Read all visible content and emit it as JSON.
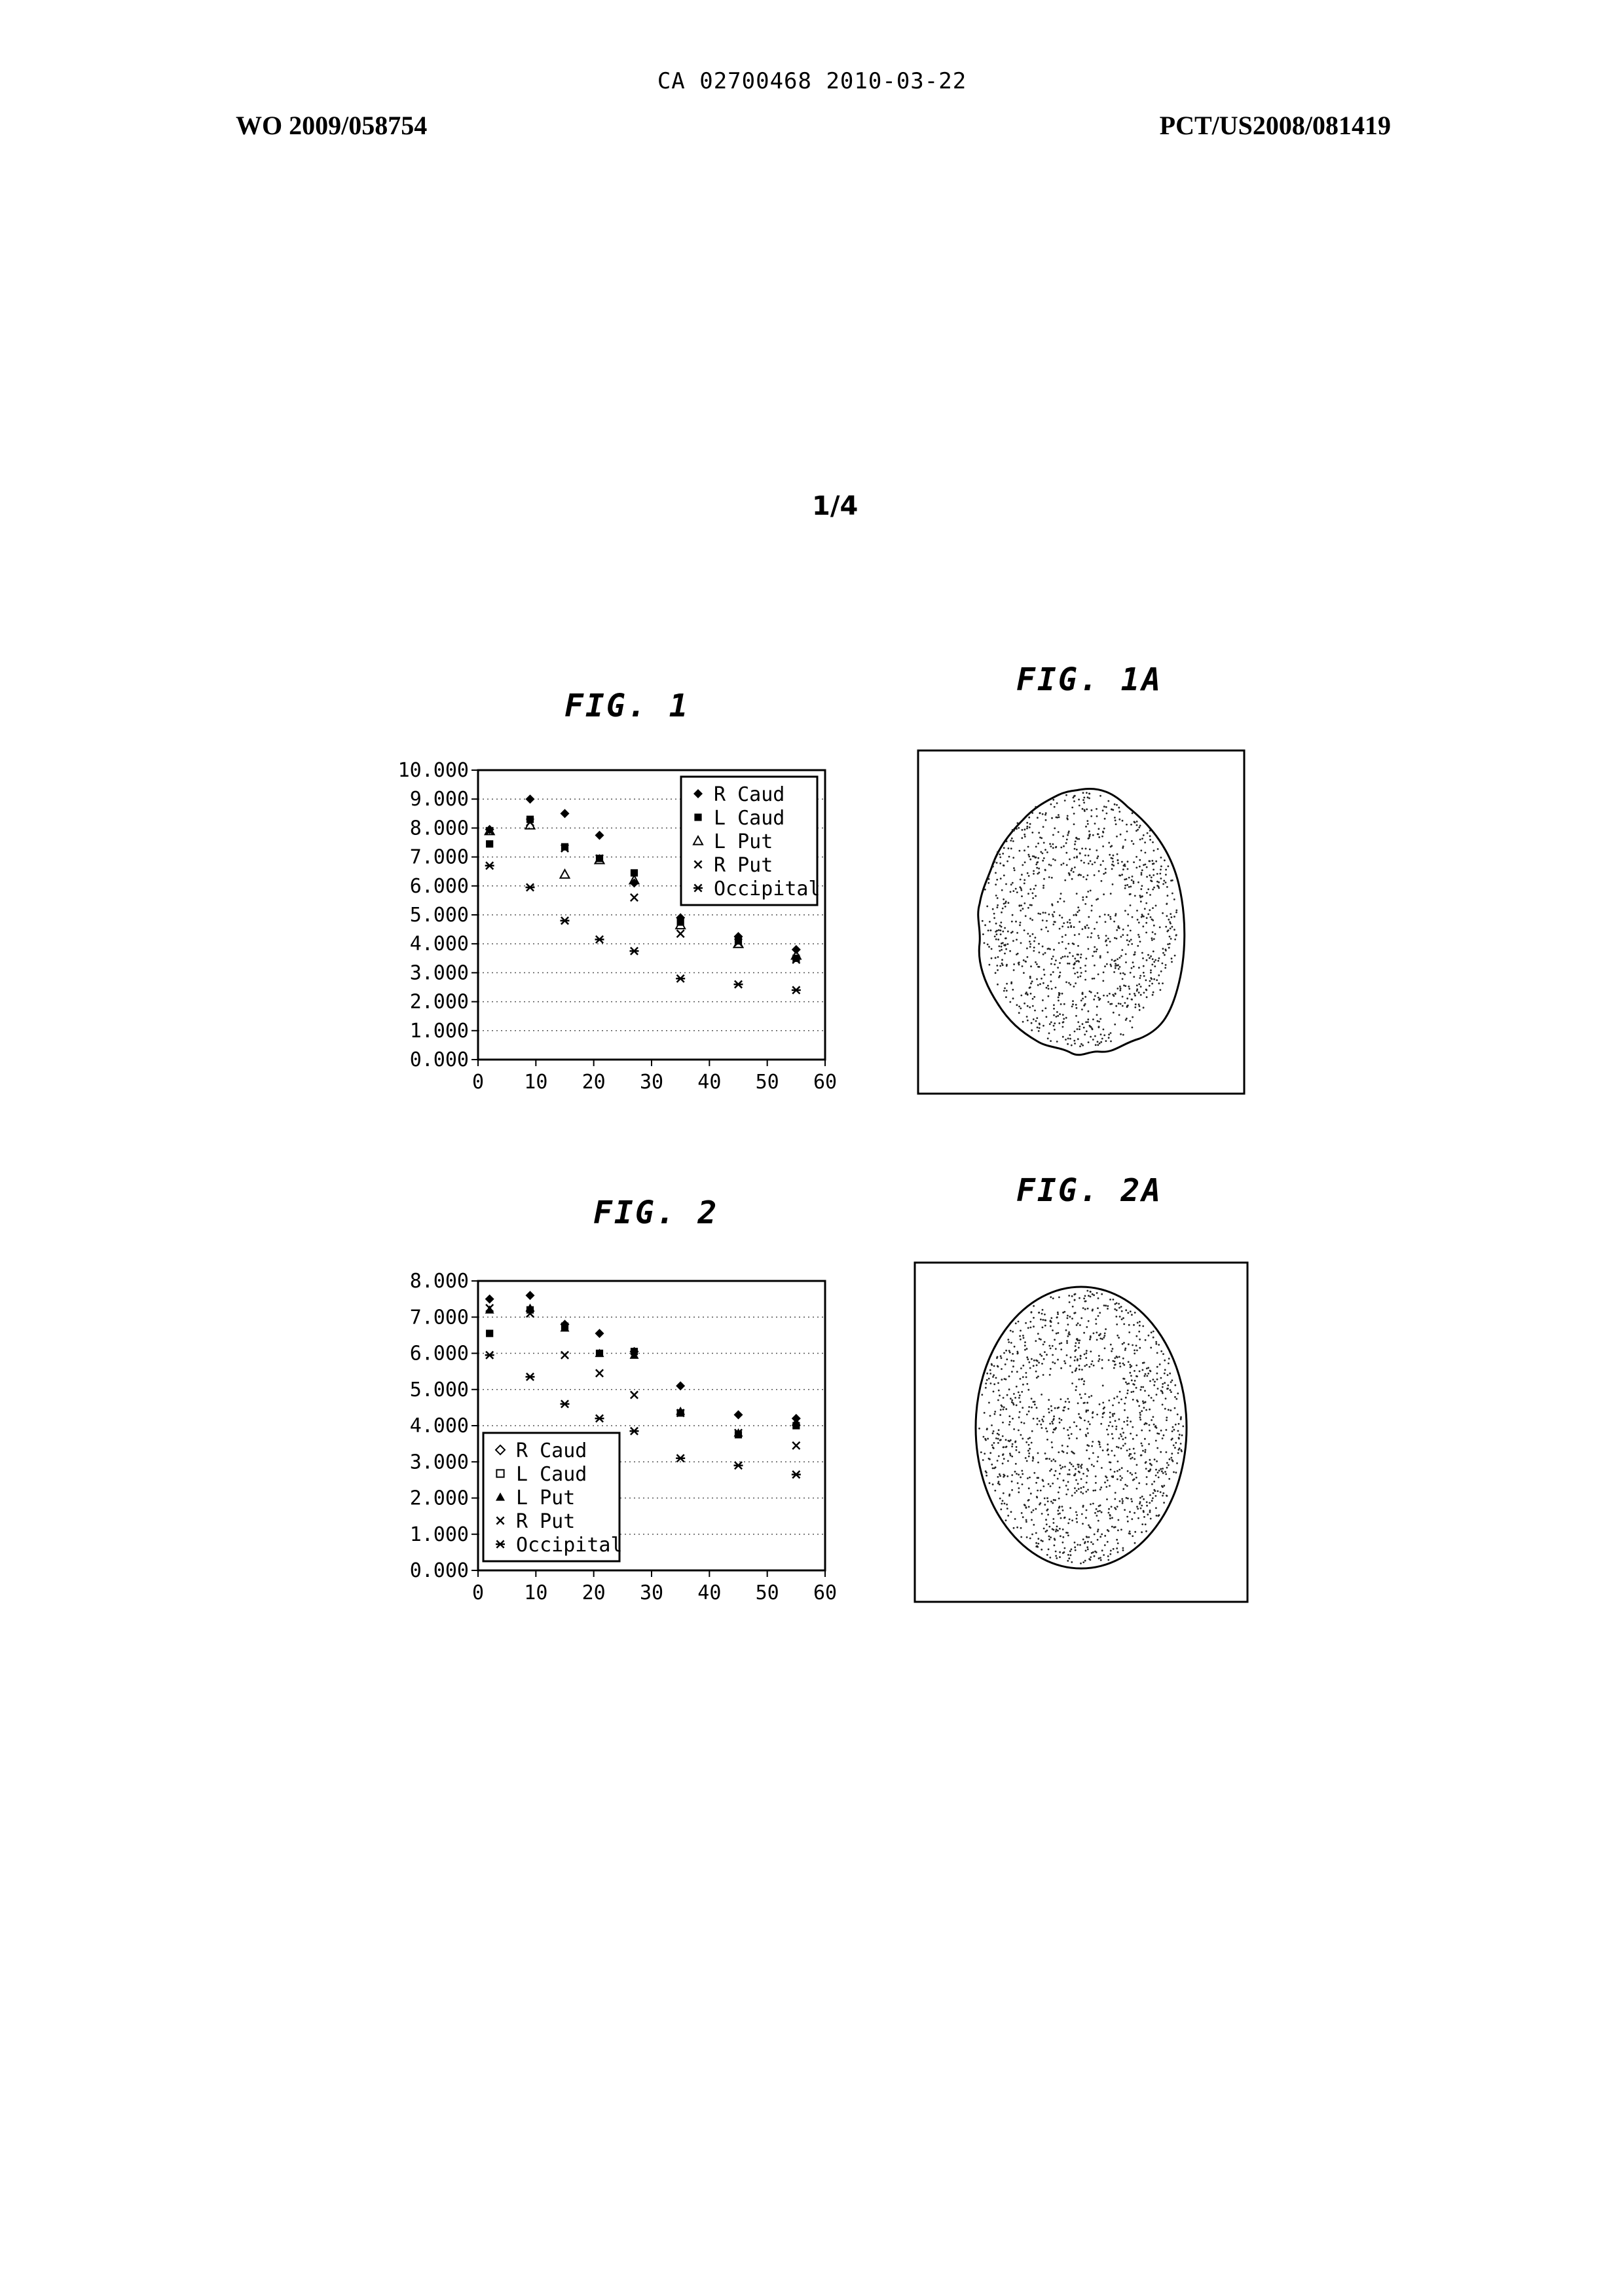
{
  "header": {
    "top_center": "CA 02700468 2010-03-22",
    "left": "WO 2009/058754",
    "right": "PCT/US2008/081419"
  },
  "page_number": "1/4",
  "figures": {
    "fig1_title": "FIG. 1",
    "fig1a_title": "FIG. 1A",
    "fig2_title": "FIG. 2",
    "fig2a_title": "FIG. 2A"
  },
  "chart_data": [
    {
      "type": "scatter",
      "title": "FIG. 1",
      "xlim": [
        0,
        60
      ],
      "ylim": [
        0,
        10
      ],
      "x_ticks": [
        "0",
        "10",
        "20",
        "30",
        "40",
        "50",
        "60"
      ],
      "y_ticks": [
        "0.000",
        "1.000",
        "2.000",
        "3.000",
        "4.000",
        "5.000",
        "6.000",
        "7.000",
        "8.000",
        "9.000",
        "10.000"
      ],
      "grid": "horizontal dotted",
      "legend_position": "top-right",
      "series": [
        {
          "name": "R Caud",
          "marker": "diamond-filled",
          "x": [
            2,
            9,
            15,
            21,
            27,
            35,
            45,
            55
          ],
          "y": [
            7.95,
            9.0,
            8.5,
            7.75,
            6.1,
            4.9,
            4.25,
            3.8
          ]
        },
        {
          "name": "L Caud",
          "marker": "square-filled",
          "x": [
            2,
            9,
            15,
            21,
            27,
            35,
            45,
            55
          ],
          "y": [
            7.45,
            8.3,
            7.35,
            6.95,
            6.45,
            4.75,
            4.1,
            3.5
          ]
        },
        {
          "name": "L Put",
          "marker": "triangle-open",
          "x": [
            2,
            9,
            15,
            21,
            27,
            35,
            45,
            55
          ],
          "y": [
            7.9,
            8.1,
            6.4,
            6.9,
            6.2,
            4.65,
            4.0,
            3.6
          ]
        },
        {
          "name": "R Put",
          "marker": "x",
          "x": [
            2,
            9,
            15,
            21,
            27,
            35,
            45,
            55
          ],
          "y": [
            7.9,
            8.2,
            7.3,
            6.95,
            5.6,
            4.35,
            4.05,
            3.45
          ]
        },
        {
          "name": "Occipital",
          "marker": "asterisk",
          "x": [
            2,
            9,
            15,
            21,
            27,
            35,
            45,
            55
          ],
          "y": [
            6.7,
            5.95,
            4.8,
            4.15,
            3.75,
            2.8,
            2.6,
            2.4
          ]
        }
      ]
    },
    {
      "type": "scatter",
      "title": "FIG. 2",
      "xlim": [
        0,
        60
      ],
      "ylim": [
        0,
        8
      ],
      "x_ticks": [
        "0",
        "10",
        "20",
        "30",
        "40",
        "50",
        "60"
      ],
      "y_ticks": [
        "0.000",
        "1.000",
        "2.000",
        "3.000",
        "4.000",
        "5.000",
        "6.000",
        "7.000",
        "8.000"
      ],
      "grid": "horizontal dotted",
      "legend_position": "bottom-left",
      "series": [
        {
          "name": "R Caud",
          "marker": "diamond-filled",
          "x": [
            2,
            9,
            15,
            21,
            27,
            35,
            45,
            55
          ],
          "y": [
            7.5,
            7.6,
            6.8,
            6.55,
            6.05,
            5.1,
            4.3,
            4.2
          ]
        },
        {
          "name": "L Caud",
          "marker": "square-filled",
          "x": [
            2,
            9,
            15,
            21,
            27,
            35,
            45,
            55
          ],
          "y": [
            6.55,
            7.2,
            6.75,
            6.0,
            6.05,
            4.35,
            3.75,
            4.0
          ]
        },
        {
          "name": "L Put",
          "marker": "triangle-filled",
          "x": [
            2,
            9,
            15,
            21,
            27,
            35,
            45,
            55
          ],
          "y": [
            7.2,
            7.25,
            6.7,
            6.0,
            5.95,
            4.4,
            3.8,
            4.1
          ]
        },
        {
          "name": "R Put",
          "marker": "x",
          "x": [
            2,
            9,
            15,
            21,
            27,
            35,
            45,
            55
          ],
          "y": [
            7.25,
            7.1,
            5.95,
            5.45,
            4.85,
            4.35,
            3.8,
            3.45
          ]
        },
        {
          "name": "Occipital",
          "marker": "asterisk",
          "x": [
            2,
            9,
            15,
            21,
            27,
            35,
            45,
            55
          ],
          "y": [
            5.95,
            5.35,
            4.6,
            4.2,
            3.85,
            3.1,
            2.9,
            2.65
          ]
        }
      ]
    }
  ]
}
